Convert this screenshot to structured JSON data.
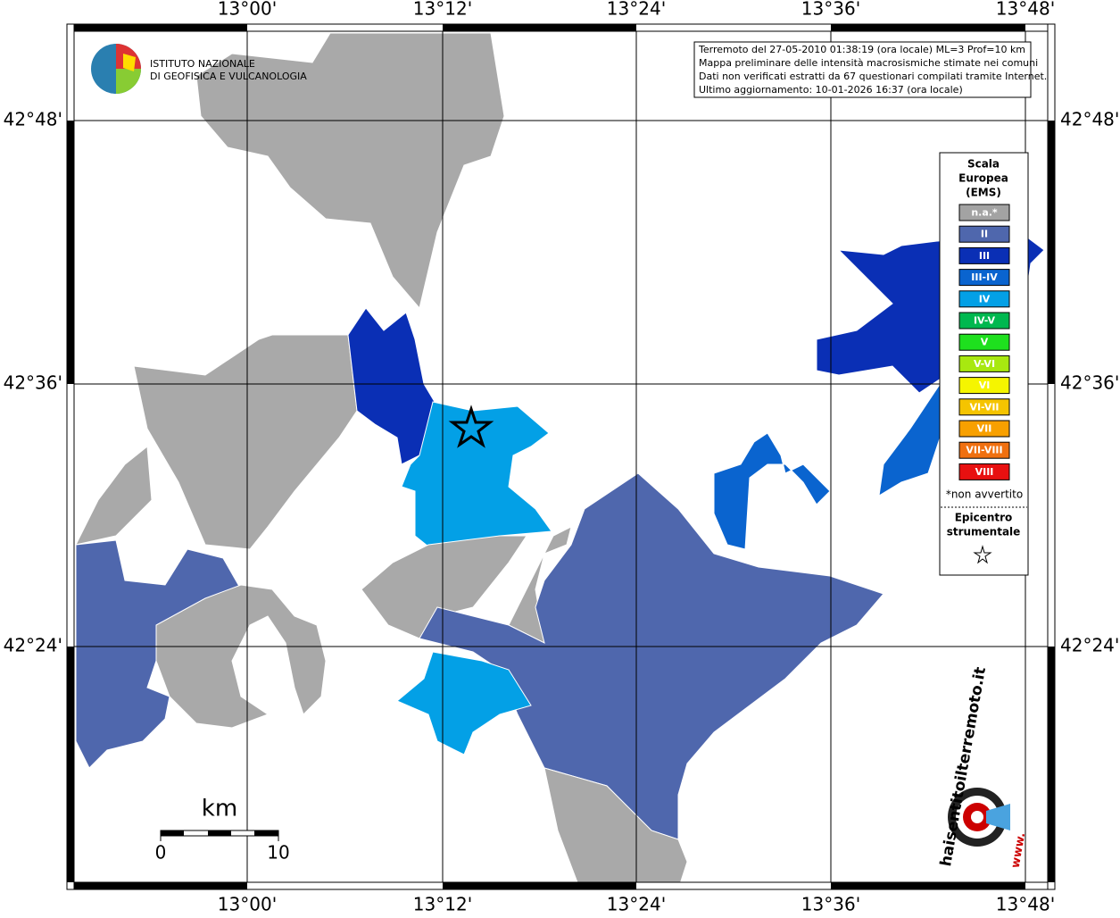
{
  "axes": {
    "longitudes": [
      "13°00'",
      "13°12'",
      "13°24'",
      "13°36'",
      "13°48'"
    ],
    "latitudes": [
      "42°48'",
      "42°36'",
      "42°24'"
    ]
  },
  "logo": {
    "lines": [
      "ISTITUTO NAZIONALE",
      "DI GEOFISICA E VULCANOLOGIA"
    ]
  },
  "info": {
    "lines": [
      "Terremoto del 27-05-2010 01:38:19 (ora locale) ML=3 Prof=10 km",
      "Mappa preliminare delle intensità macrosismiche stimate nei comuni",
      "Dati non verificati estratti da 67 questionari compilati tramite Internet.",
      "Ultimo aggiornamento: 10-01-2026 16:37 (ora locale)"
    ]
  },
  "legend": {
    "title": [
      "Scala",
      "Europea",
      "(EMS)"
    ],
    "items": [
      {
        "label": "n.a.*",
        "color": "#a3a3a3"
      },
      {
        "label": "II",
        "color": "#4f67ad"
      },
      {
        "label": "III",
        "color": "#0a2fb5"
      },
      {
        "label": "III-IV",
        "color": "#0a64cf"
      },
      {
        "label": "IV",
        "color": "#03a0e6"
      },
      {
        "label": "IV-V",
        "color": "#00b84f"
      },
      {
        "label": "V",
        "color": "#1ee01e"
      },
      {
        "label": "V-VI",
        "color": "#a8e810"
      },
      {
        "label": "VI",
        "color": "#f5f500"
      },
      {
        "label": "VI-VII",
        "color": "#f5c400"
      },
      {
        "label": "VII",
        "color": "#f8a000"
      },
      {
        "label": "VII-VIII",
        "color": "#f07010"
      },
      {
        "label": "VIII",
        "color": "#e81010"
      }
    ],
    "note": "*non avvertito",
    "epicenter": [
      "Epicentro",
      "strumentale"
    ]
  },
  "scale_bar": {
    "unit": "km",
    "labels": [
      "0",
      "10"
    ]
  },
  "site_logo": {
    "text": "haisentitoilterremoto.it",
    "prefix": "www."
  }
}
